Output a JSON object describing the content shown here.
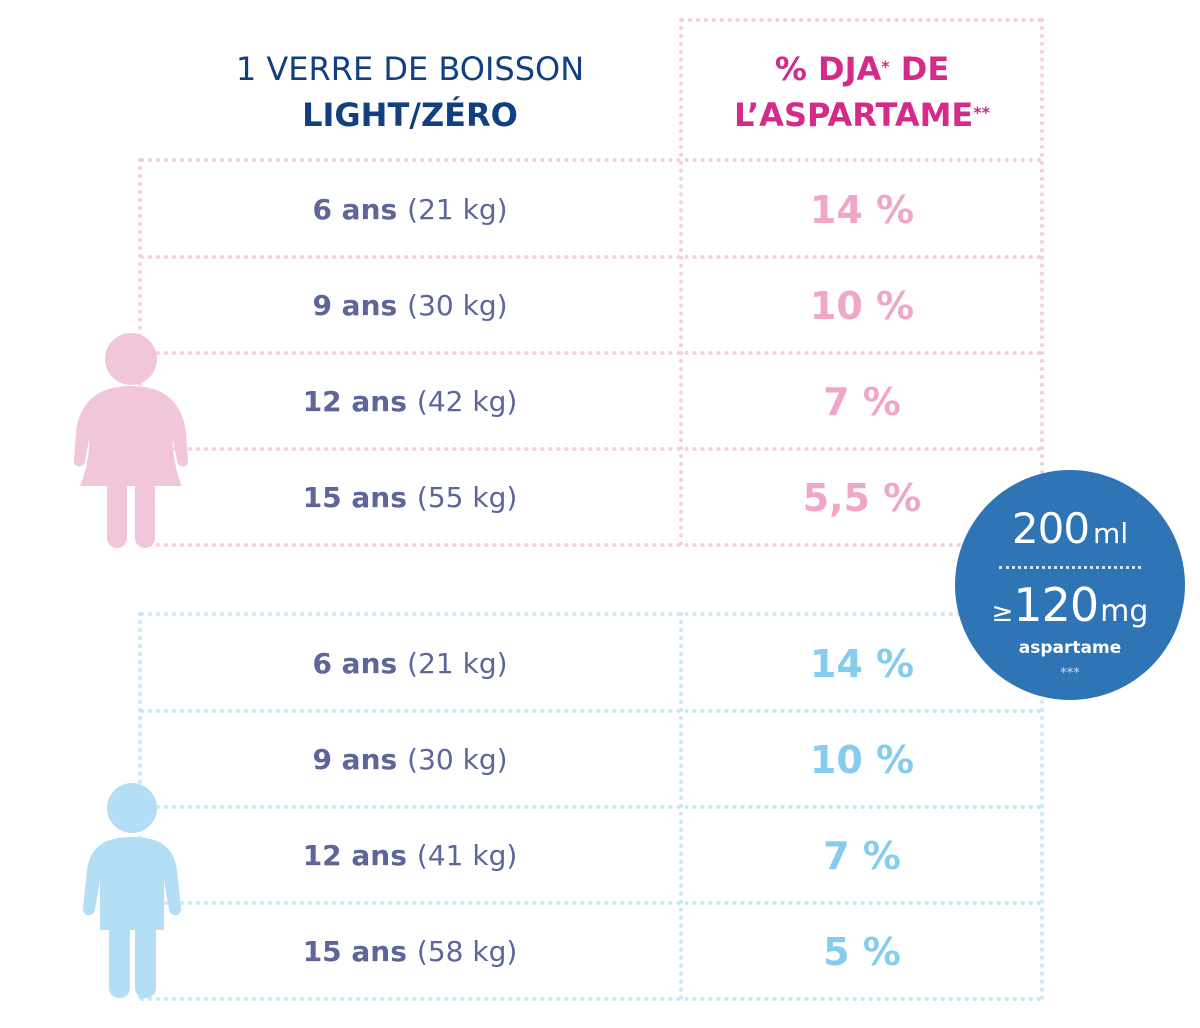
{
  "header": {
    "left_line1": "1 VERRE DE BOISSON",
    "left_line2": "LIGHT/ZÉRO",
    "right_line1_a": "% DJA",
    "right_line1_sup": "*",
    "right_line1_b": " DE",
    "right_line2_a": "L’ASPARTAME",
    "right_line2_sup": "**"
  },
  "girls": {
    "icon": "girl-icon",
    "color": "#f2c6da",
    "rows": [
      {
        "age": "6 ans",
        "weight": "(21 kg)",
        "pct": "14 %"
      },
      {
        "age": "9 ans",
        "weight": "(30 kg)",
        "pct": "10 %"
      },
      {
        "age": "12 ans",
        "weight": "(42 kg)",
        "pct": "7 %"
      },
      {
        "age": "15 ans",
        "weight": "(55 kg)",
        "pct": "5,5 %"
      }
    ]
  },
  "boys": {
    "icon": "boy-icon",
    "color": "#b3def5",
    "rows": [
      {
        "age": "6 ans",
        "weight": "(21 kg)",
        "pct": "14 %"
      },
      {
        "age": "9 ans",
        "weight": "(30 kg)",
        "pct": "10 %"
      },
      {
        "age": "12 ans",
        "weight": "(41 kg)",
        "pct": "7 %"
      },
      {
        "age": "15 ans",
        "weight": "(58 kg)",
        "pct": "5 %"
      }
    ]
  },
  "badge": {
    "volume": "200",
    "volume_unit": "ml",
    "ge_symbol": "≥",
    "amount": "120",
    "amount_unit": "mg",
    "substance": "aspartame",
    "footnote": "***"
  }
}
